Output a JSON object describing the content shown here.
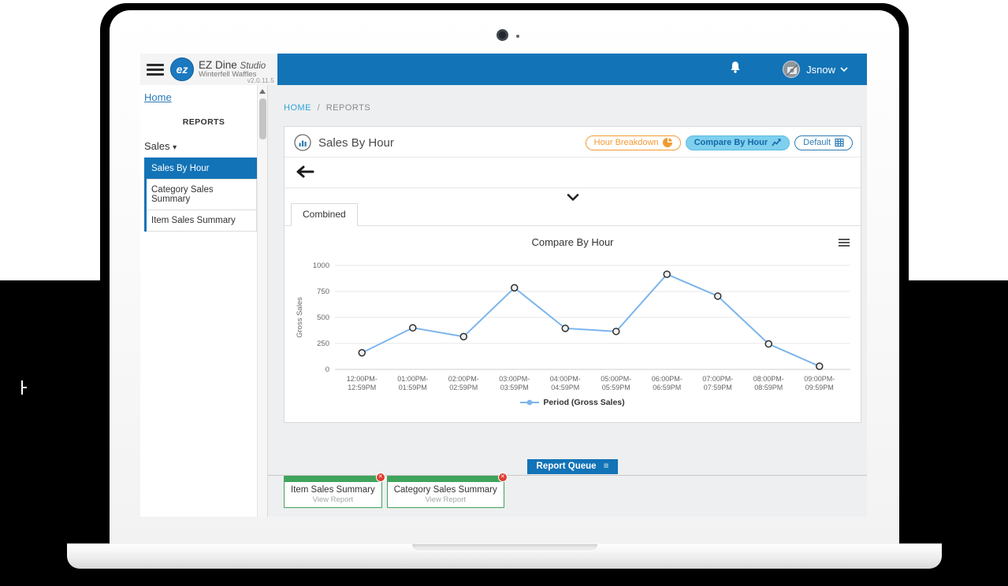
{
  "app": {
    "brand_name": "EZ Dine",
    "brand_suffix": "Studio",
    "brand_sub": "Winterfell Waffles",
    "brand_initials": "ez",
    "version": "v2.0.11.5",
    "user_name": "Jsnow"
  },
  "sidebar": {
    "home_link": "Home",
    "section_title": "REPORTS",
    "group_label": "Sales",
    "items": [
      {
        "label": "Sales By Hour",
        "active": true
      },
      {
        "label": "Category Sales Summary",
        "active": false
      },
      {
        "label": "Item Sales Summary",
        "active": false
      }
    ]
  },
  "breadcrumb": {
    "home": "HOME",
    "separator": "/",
    "current": "REPORTS"
  },
  "panel": {
    "title": "Sales By Hour",
    "actions": [
      {
        "label": "Hour Breakdown",
        "icon": "pie-chart-icon",
        "style": "outline-orange"
      },
      {
        "label": "Compare By Hour",
        "icon": "line-chart-icon",
        "style": "filled-blue"
      },
      {
        "label": "Default",
        "icon": "table-icon",
        "style": "outline-blue"
      }
    ],
    "tab": "Combined"
  },
  "chart_data": {
    "type": "line",
    "title": "Compare By Hour",
    "xlabel": "",
    "ylabel": "Gross Sales",
    "ylim": [
      0,
      1000
    ],
    "yticks": [
      0,
      250,
      500,
      750,
      1000
    ],
    "grid": true,
    "legend_position": "bottom",
    "categories": [
      "12:00PM-12:59PM",
      "01:00PM-01:59PM",
      "02:00PM-02:59PM",
      "03:00PM-03:59PM",
      "04:00PM-04:59PM",
      "05:00PM-05:59PM",
      "06:00PM-06:59PM",
      "07:00PM-07:59PM",
      "08:00PM-08:59PM",
      "09:00PM-09:59PM"
    ],
    "series": [
      {
        "name": "Period (Gross Sales)",
        "values": [
          160,
          400,
          315,
          785,
          395,
          365,
          915,
          705,
          245,
          30
        ]
      }
    ],
    "line_color": "#7cb5ec",
    "marker_fill": "#f0f0f0",
    "marker_stroke": "#2f2f2f"
  },
  "queue": {
    "button_label": "Report Queue",
    "cards": [
      {
        "title": "Item Sales Summary",
        "action": "View Report"
      },
      {
        "title": "Category Sales Summary",
        "action": "View Report"
      }
    ]
  },
  "icons": {
    "menu": "≡",
    "close": "✕",
    "caret_down": "▾"
  },
  "colors": {
    "header_blue": "#1273b7",
    "link_blue": "#2ea3dc",
    "accent_orange": "#f09b34",
    "button_fill_blue": "#7fd0ee",
    "button_text_blue": "#1467a8",
    "outline_blue": "#2d7cb5",
    "green": "#3fa45c",
    "red": "#e03c31"
  }
}
